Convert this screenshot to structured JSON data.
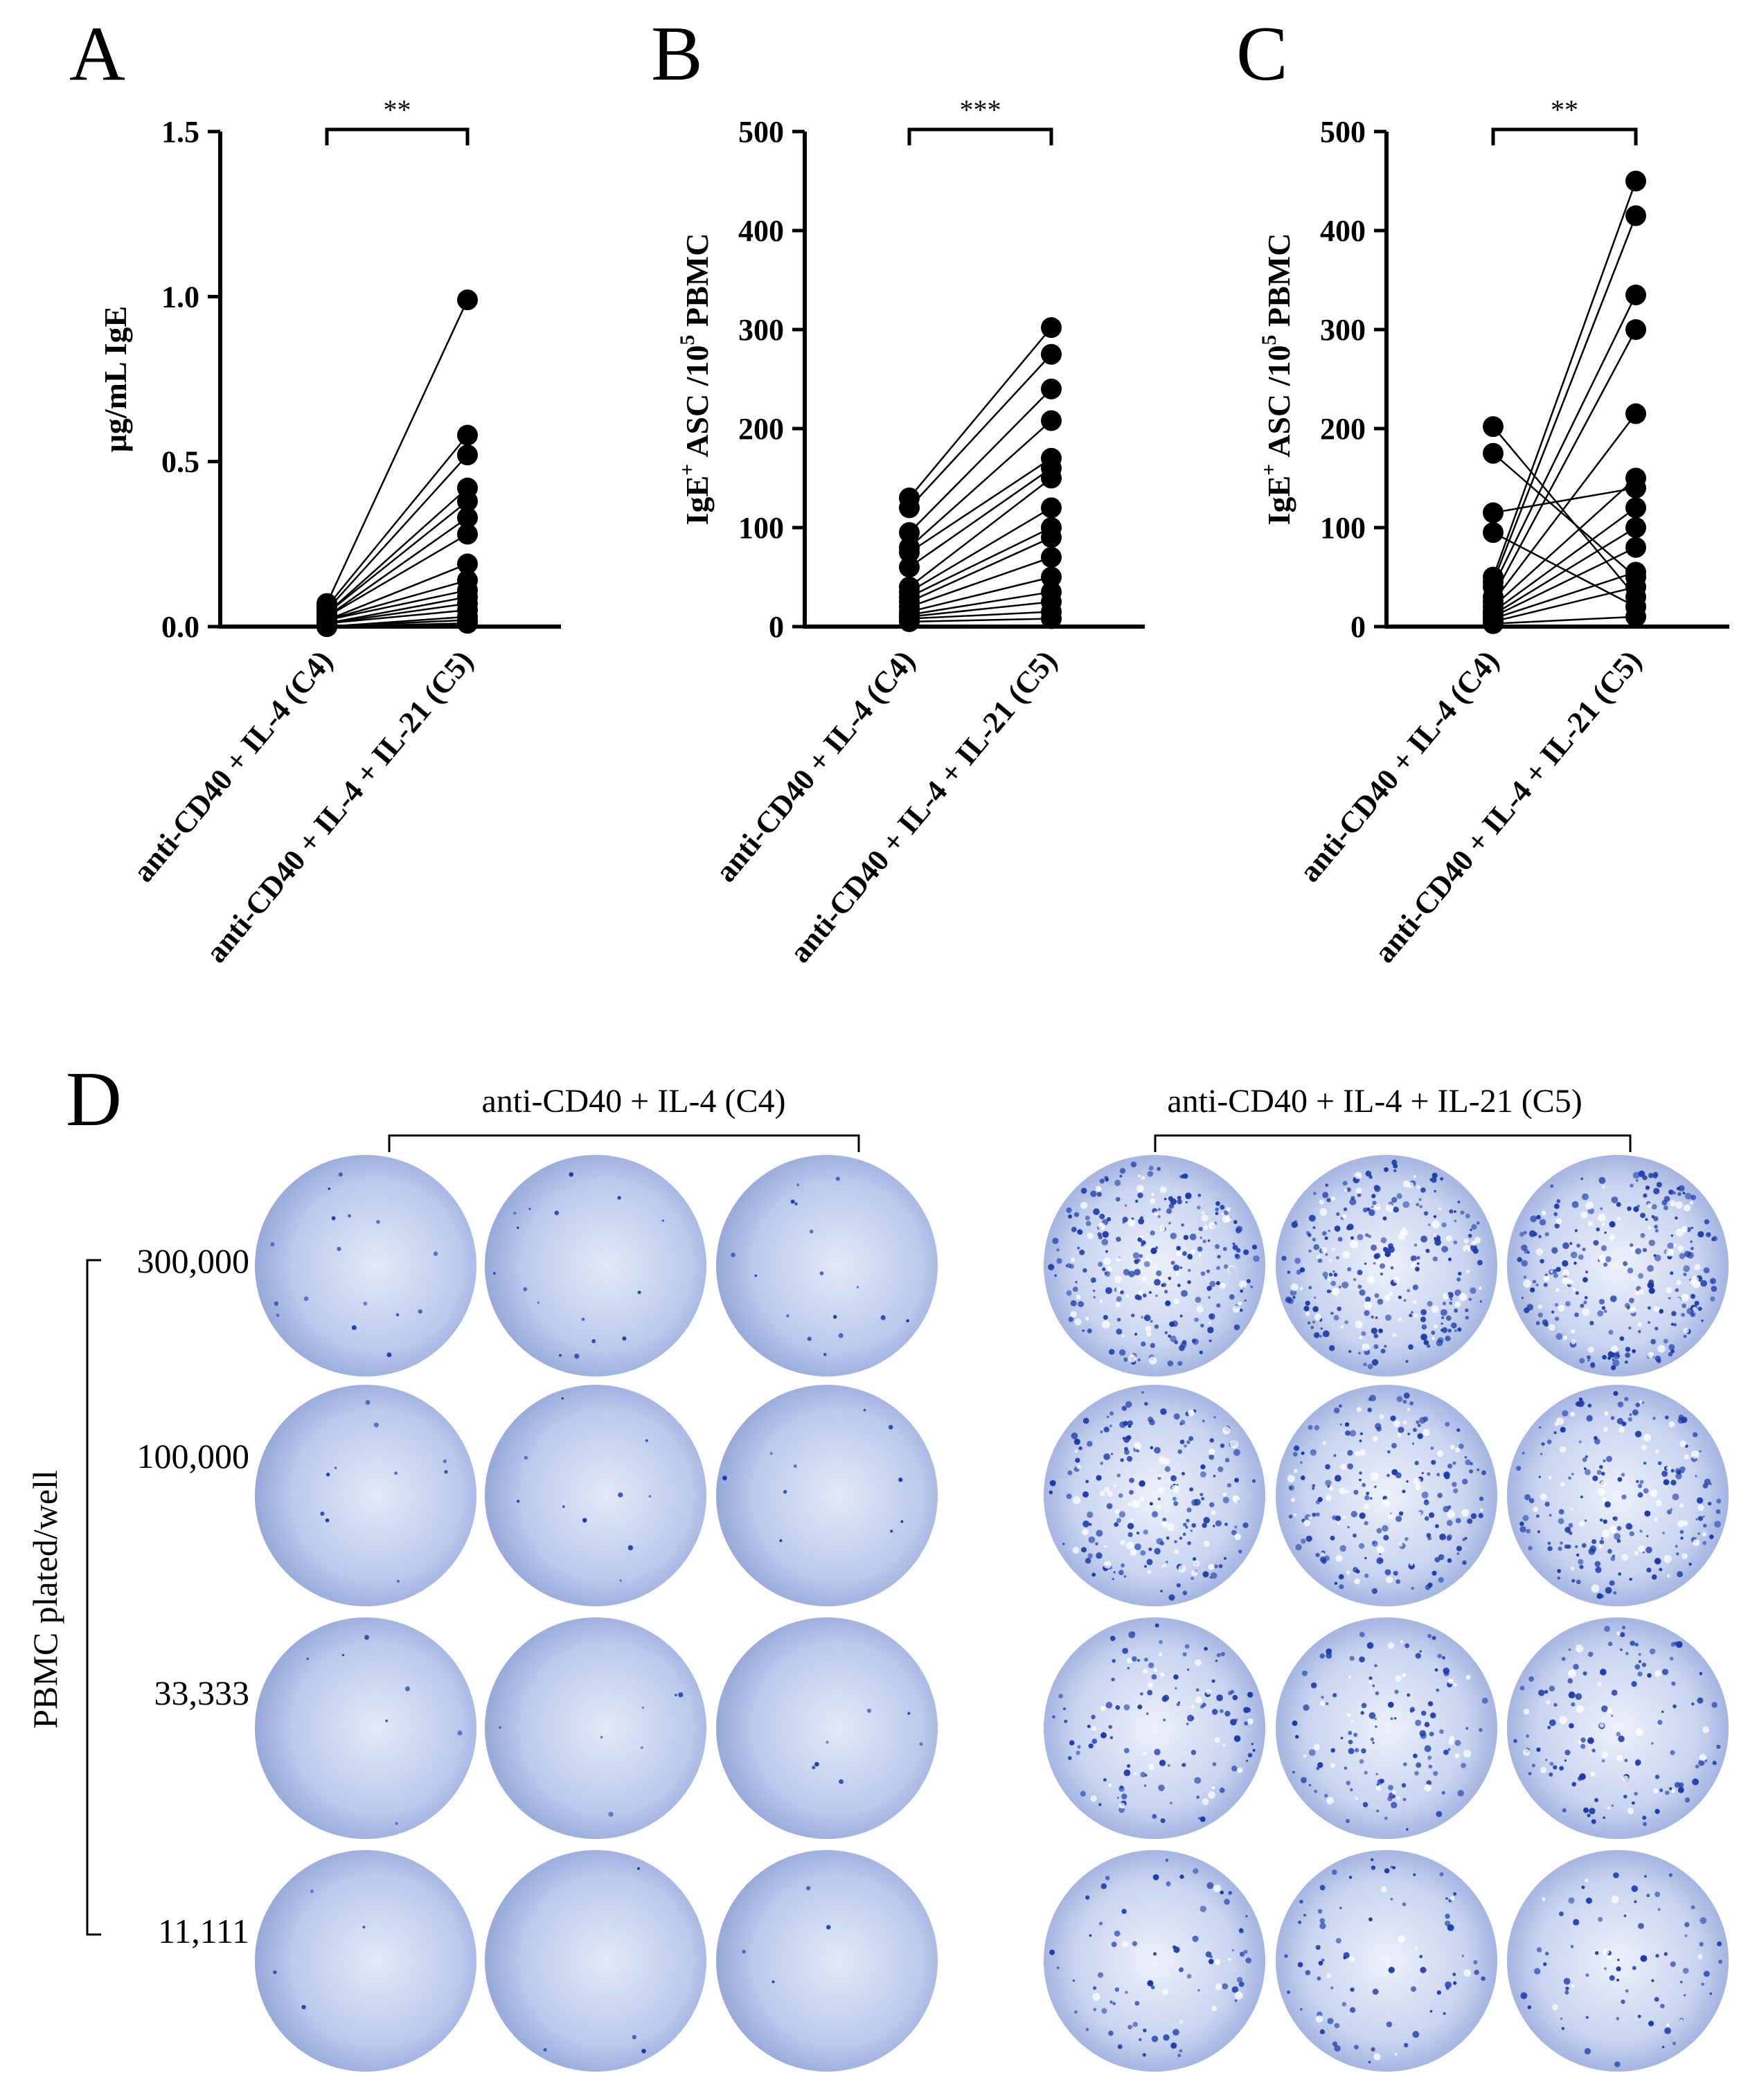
{
  "panel_letters": [
    "A",
    "B",
    "C",
    "D"
  ],
  "conditions": {
    "c4": "anti-CD40 + IL-4 (C4)",
    "c5": "anti-CD40 + IL-4 + IL-21 (C5)"
  },
  "chart_data": [
    {
      "type": "scatter",
      "panel": "A",
      "title": "",
      "ylabel": "μg/mL IgE",
      "ylim": [
        0,
        1.5
      ],
      "yticks": [
        "0.0",
        "0.5",
        "1.0",
        "1.5"
      ],
      "significance": "**",
      "categories": [
        "anti-CD40 + IL-4 (C4)",
        "anti-CD40 + IL-4 + IL-21 (C5)"
      ],
      "pairs": [
        [
          0.07,
          0.99
        ],
        [
          0.06,
          0.58
        ],
        [
          0.05,
          0.52
        ],
        [
          0.04,
          0.42
        ],
        [
          0.04,
          0.38
        ],
        [
          0.03,
          0.33
        ],
        [
          0.03,
          0.28
        ],
        [
          0.02,
          0.19
        ],
        [
          0.02,
          0.14
        ],
        [
          0.02,
          0.11
        ],
        [
          0.01,
          0.09
        ],
        [
          0.01,
          0.07
        ],
        [
          0.01,
          0.05
        ],
        [
          0.0,
          0.03
        ],
        [
          0.0,
          0.02
        ],
        [
          0.0,
          0.01
        ]
      ]
    },
    {
      "type": "scatter",
      "panel": "B",
      "title": "",
      "ylabel": "IgE+ ASC /10^5 PBMC",
      "ylabel_parts": {
        "base": "IgE",
        "sup1": "+",
        "mid": " ASC /10",
        "sup2": "5",
        "tail": " PBMC"
      },
      "ylim": [
        0,
        500
      ],
      "yticks": [
        "0",
        "100",
        "200",
        "300",
        "400",
        "500"
      ],
      "significance": "***",
      "categories": [
        "anti-CD40 + IL-4 (C4)",
        "anti-CD40 + IL-4 + IL-21 (C5)"
      ],
      "pairs": [
        [
          130,
          302
        ],
        [
          120,
          275
        ],
        [
          95,
          240
        ],
        [
          80,
          208
        ],
        [
          75,
          170
        ],
        [
          60,
          160
        ],
        [
          40,
          150
        ],
        [
          35,
          120
        ],
        [
          30,
          100
        ],
        [
          25,
          90
        ],
        [
          20,
          70
        ],
        [
          15,
          50
        ],
        [
          12,
          35
        ],
        [
          10,
          25
        ],
        [
          8,
          15
        ],
        [
          5,
          8
        ]
      ]
    },
    {
      "type": "scatter",
      "panel": "C",
      "title": "",
      "ylabel": "IgE+ ASC /10^5 PBMC",
      "ylabel_parts": {
        "base": "IgE",
        "sup1": "+",
        "mid": " ASC /10",
        "sup2": "5",
        "tail": " PBMC"
      },
      "ylim": [
        0,
        500
      ],
      "yticks": [
        "0",
        "100",
        "200",
        "300",
        "400",
        "500"
      ],
      "significance": "**",
      "categories": [
        "anti-CD40 + IL-4 (C4)",
        "anti-CD40 + IL-4 + IL-21 (C5)"
      ],
      "pairs": [
        [
          202,
          30
        ],
        [
          175,
          50
        ],
        [
          115,
          140
        ],
        [
          95,
          20
        ],
        [
          50,
          450
        ],
        [
          45,
          415
        ],
        [
          40,
          335
        ],
        [
          30,
          300
        ],
        [
          25,
          215
        ],
        [
          20,
          150
        ],
        [
          15,
          120
        ],
        [
          12,
          100
        ],
        [
          10,
          80
        ],
        [
          8,
          55
        ],
        [
          5,
          40
        ],
        [
          3,
          10
        ]
      ]
    }
  ],
  "panel_d": {
    "group_c4": "anti-CD40 + IL-4 (C4)",
    "group_c5": "anti-CD40 + IL-4 + IL-21 (C5)",
    "axis_label": "PBMC plated/well",
    "row_labels": [
      "300,000",
      "100,000",
      "33,333",
      "11,111"
    ]
  },
  "colors": {
    "well_light": "#dbe3f5",
    "well_mid": "#aebfe6",
    "well_edge": "#8c9fd2",
    "spot": "#1c3aa8"
  }
}
